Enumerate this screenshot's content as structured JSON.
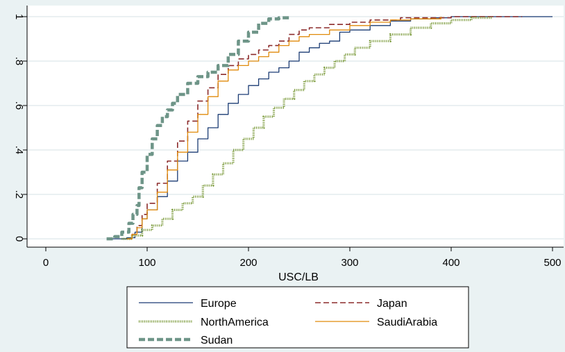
{
  "chart_data": {
    "type": "line",
    "title": "",
    "xlabel": "USC/LB",
    "ylabel": "",
    "xlim": [
      0,
      500
    ],
    "ylim": [
      0,
      1
    ],
    "x_ticks": [
      0,
      100,
      200,
      300,
      400,
      500
    ],
    "x_tick_labels": [
      "0",
      "100",
      "200",
      "300",
      "400",
      "500"
    ],
    "y_ticks": [
      0,
      0.2,
      0.4,
      0.6,
      0.8,
      1
    ],
    "y_tick_labels": [
      "0",
      ".2",
      ".4",
      ".6",
      ".8",
      "1"
    ],
    "grid": "horizontal",
    "legend_position": "bottom",
    "series": [
      {
        "name": "Europe",
        "color": "#1a3b73",
        "style": "solid",
        "x": [
          65,
          80,
          88,
          95,
          100,
          110,
          120,
          130,
          140,
          150,
          160,
          170,
          180,
          190,
          200,
          210,
          220,
          230,
          240,
          250,
          260,
          270,
          280,
          290,
          300,
          320,
          340,
          360,
          380,
          400,
          450,
          500
        ],
        "y": [
          0,
          0.005,
          0.03,
          0.09,
          0.13,
          0.19,
          0.26,
          0.35,
          0.39,
          0.45,
          0.5,
          0.56,
          0.61,
          0.65,
          0.69,
          0.72,
          0.75,
          0.77,
          0.8,
          0.84,
          0.86,
          0.88,
          0.89,
          0.93,
          0.94,
          0.96,
          0.98,
          0.99,
          0.995,
          1.0,
          1.0,
          1.0
        ]
      },
      {
        "name": "Japan",
        "color": "#8b2a2a",
        "style": "dash",
        "x": [
          80,
          85,
          90,
          95,
          100,
          110,
          120,
          130,
          140,
          150,
          160,
          170,
          180,
          190,
          200,
          210,
          220,
          230,
          240,
          250,
          260,
          280,
          300,
          320,
          350,
          400,
          470
        ],
        "y": [
          0,
          0.02,
          0.06,
          0.11,
          0.16,
          0.25,
          0.35,
          0.44,
          0.53,
          0.62,
          0.68,
          0.74,
          0.78,
          0.81,
          0.83,
          0.85,
          0.87,
          0.89,
          0.92,
          0.94,
          0.95,
          0.965,
          0.975,
          0.985,
          0.995,
          1.0,
          1.0
        ]
      },
      {
        "name": "NorthAmerica",
        "color": "#6b8e23",
        "style": "dotted",
        "x": [
          75,
          85,
          95,
          105,
          115,
          125,
          135,
          145,
          155,
          165,
          175,
          185,
          195,
          205,
          215,
          225,
          235,
          245,
          255,
          265,
          275,
          285,
          295,
          305,
          320,
          340,
          360,
          380,
          400,
          420,
          440
        ],
        "y": [
          0,
          0.015,
          0.04,
          0.06,
          0.09,
          0.13,
          0.16,
          0.19,
          0.24,
          0.29,
          0.34,
          0.4,
          0.45,
          0.5,
          0.55,
          0.59,
          0.63,
          0.67,
          0.71,
          0.74,
          0.77,
          0.8,
          0.83,
          0.86,
          0.89,
          0.92,
          0.95,
          0.97,
          0.985,
          0.995,
          1.0
        ]
      },
      {
        "name": "SaudiArabia",
        "color": "#e08a0a",
        "style": "solid",
        "x": [
          80,
          85,
          90,
          95,
          100,
          110,
          120,
          130,
          140,
          150,
          160,
          170,
          180,
          190,
          200,
          210,
          220,
          230,
          240,
          250,
          260,
          280,
          300,
          320,
          340,
          360,
          390
        ],
        "y": [
          0,
          0.02,
          0.05,
          0.09,
          0.13,
          0.21,
          0.31,
          0.39,
          0.48,
          0.56,
          0.64,
          0.71,
          0.76,
          0.78,
          0.8,
          0.82,
          0.84,
          0.87,
          0.89,
          0.91,
          0.92,
          0.94,
          0.96,
          0.975,
          0.985,
          0.99,
          1.0
        ]
      },
      {
        "name": "Sudan",
        "color": "#6e9588",
        "style": "thickdash",
        "x": [
          60,
          68,
          75,
          82,
          86,
          90,
          92,
          95,
          100,
          105,
          110,
          115,
          120,
          125,
          130,
          140,
          150,
          160,
          170,
          180,
          190,
          200,
          210,
          220,
          230,
          240
        ],
        "y": [
          0,
          0.01,
          0.03,
          0.07,
          0.11,
          0.15,
          0.23,
          0.3,
          0.38,
          0.45,
          0.51,
          0.55,
          0.58,
          0.61,
          0.65,
          0.7,
          0.73,
          0.75,
          0.78,
          0.83,
          0.89,
          0.93,
          0.97,
          0.99,
          0.995,
          1.0
        ]
      }
    ]
  }
}
